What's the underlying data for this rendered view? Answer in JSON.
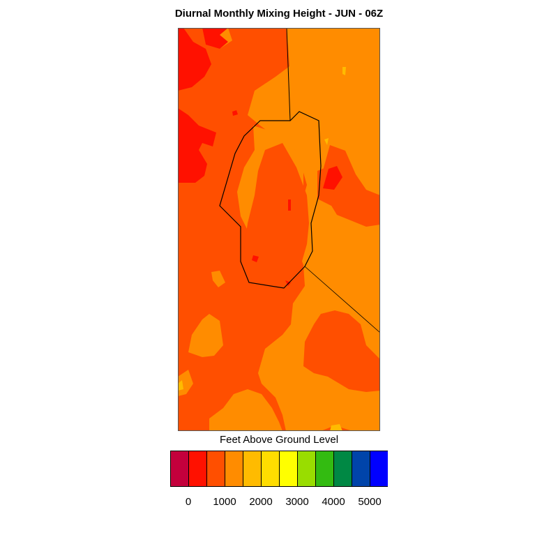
{
  "title": "Diurnal Monthly Mixing Height - JUN - 06Z",
  "legend": {
    "title": "Feet Above Ground Level",
    "colors": [
      "#c4003c",
      "#ff1100",
      "#ff4f00",
      "#ff8c00",
      "#ffbb00",
      "#ffdd00",
      "#ffff00",
      "#99dd00",
      "#33bb11",
      "#008844",
      "#0044aa",
      "#0000ff"
    ],
    "tick_labels": [
      "0",
      "1000",
      "2000",
      "3000",
      "4000",
      "5000"
    ]
  },
  "map_colors": {
    "ocean_low": "#ff4f00",
    "land_mid": "#ff8c00",
    "peak_low": "#ff1100",
    "spot_high": "#ffbb00",
    "boundary": "#000000"
  }
}
